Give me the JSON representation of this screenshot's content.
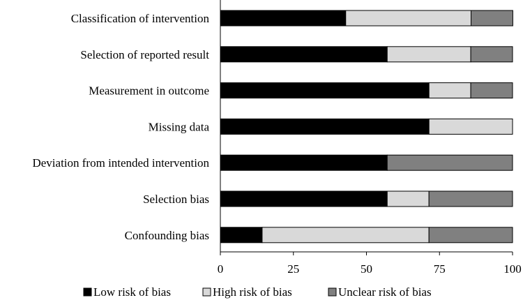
{
  "chart_data": {
    "type": "bar",
    "orientation": "horizontal",
    "stacked": true,
    "categories": [
      "Classification of intervention",
      "Selection of reported result",
      "Measurement in outcome",
      "Missing data",
      "Deviation from intended intervention",
      "Selection bias",
      "Confounding bias"
    ],
    "series": [
      {
        "name": "Low risk of bias",
        "color": "#000000",
        "values": [
          42.9,
          57.1,
          71.4,
          71.4,
          57.1,
          57.1,
          14.3
        ]
      },
      {
        "name": "High risk of bias",
        "color": "#d9d9d9",
        "values": [
          42.9,
          28.6,
          14.3,
          28.6,
          0,
          14.3,
          57.1
        ]
      },
      {
        "name": "Unclear risk of bias",
        "color": "#808080",
        "values": [
          14.3,
          14.3,
          14.3,
          0,
          42.9,
          28.6,
          28.6
        ]
      }
    ],
    "xlim": [
      0,
      100
    ],
    "xticks": [
      0,
      25,
      50,
      75,
      100
    ],
    "xlabel": "",
    "ylabel": "",
    "title": "",
    "grid": false,
    "legend_position": "bottom"
  }
}
